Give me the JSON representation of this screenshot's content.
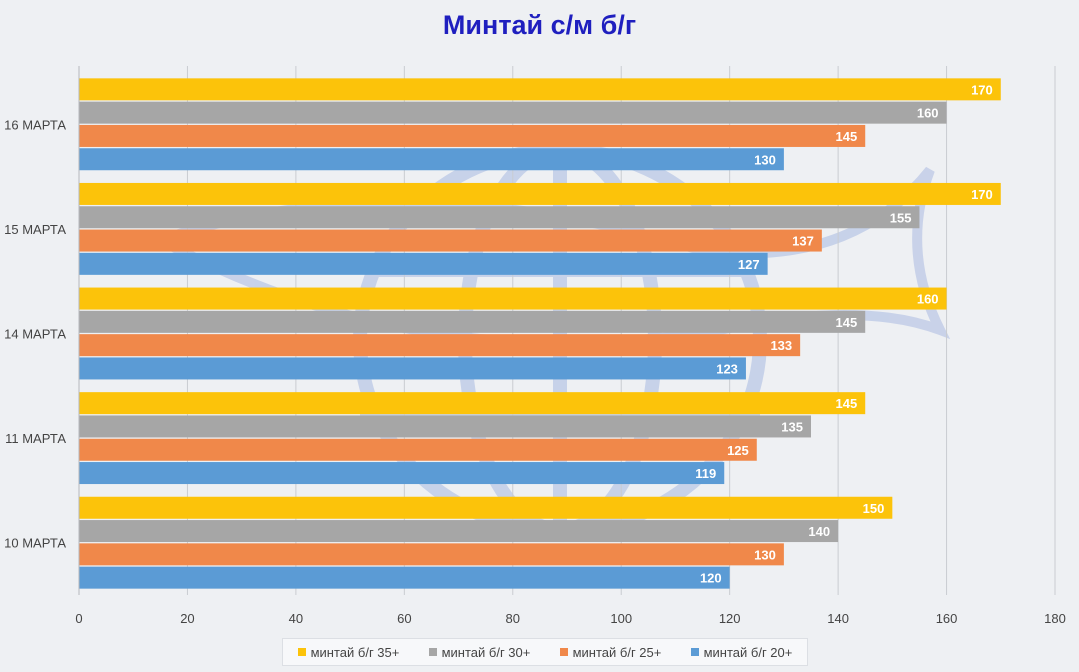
{
  "chart_data": {
    "type": "bar",
    "orientation": "horizontal",
    "title": "Минтай с/м б/г",
    "categories": [
      "16 МАРТА",
      "15 МАРТА",
      "14 МАРТА",
      "11 МАРТА",
      "10 МАРТА"
    ],
    "series": [
      {
        "name": "минтай б/г 35+",
        "color": "#fcc30a",
        "values": [
          170,
          170,
          160,
          145,
          150
        ]
      },
      {
        "name": "минтай б/г 30+",
        "color": "#a6a6a6",
        "values": [
          160,
          155,
          145,
          135,
          140
        ]
      },
      {
        "name": "минтай б/г 25+",
        "color": "#f0884a",
        "values": [
          145,
          137,
          133,
          125,
          130
        ]
      },
      {
        "name": "минтай б/г 20+",
        "color": "#5b9bd5",
        "values": [
          130,
          127,
          123,
          119,
          120
        ]
      }
    ],
    "xlim": [
      0,
      180
    ],
    "xticks": [
      0,
      20,
      40,
      60,
      80,
      100,
      120,
      140,
      160,
      180
    ],
    "grid": true,
    "legend": "bottom",
    "data_labels": true
  }
}
